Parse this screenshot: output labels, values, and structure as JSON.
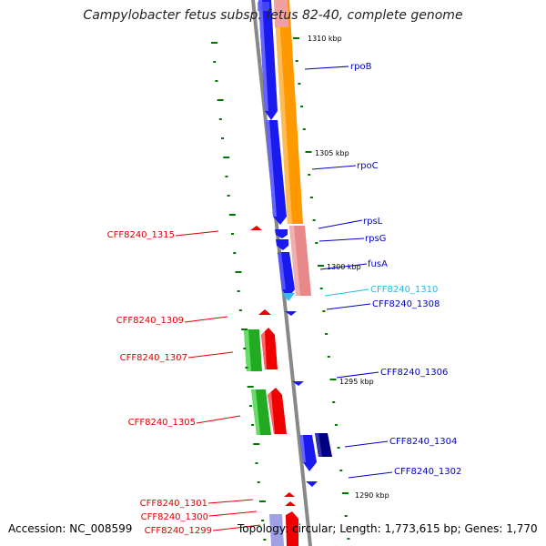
{
  "header": {
    "title": "Campylobacter fetus subsp. fetus 82-40, complete genome"
  },
  "footer": {
    "accession": "Accession: NC_008599",
    "stats": "Topology: circular; Length: 1,773,615 bp; Genes: 1,770"
  },
  "colors": {
    "backbone": "#888888",
    "forward_label": "#0000cc",
    "reverse_label": "#dd0000",
    "rna_label": "#22bbdd",
    "tick": "#007700",
    "orange_band": "#ff9900",
    "pink_band": "#e88888"
  },
  "scale": {
    "ticks": [
      {
        "label": "1310 kbp"
      },
      {
        "label": "1305 kbp"
      },
      {
        "label": "1300 kbp"
      },
      {
        "label": "1295 kbp"
      },
      {
        "label": "1290 kbp"
      }
    ]
  },
  "gene_labels": [
    {
      "text": "rpoB",
      "strand": "forward"
    },
    {
      "text": "rpoC",
      "strand": "forward"
    },
    {
      "text": "rpsL",
      "strand": "forward"
    },
    {
      "text": "rpsG",
      "strand": "forward"
    },
    {
      "text": "fusA",
      "strand": "forward"
    },
    {
      "text": "CFF8240_1310",
      "strand": "rna"
    },
    {
      "text": "CFF8240_1308",
      "strand": "forward"
    },
    {
      "text": "CFF8240_1306",
      "strand": "forward"
    },
    {
      "text": "CFF8240_1304",
      "strand": "forward"
    },
    {
      "text": "CFF8240_1302",
      "strand": "forward"
    },
    {
      "text": "CFF8240_1315",
      "strand": "reverse"
    },
    {
      "text": "CFF8240_1309",
      "strand": "reverse"
    },
    {
      "text": "CFF8240_1307",
      "strand": "reverse"
    },
    {
      "text": "CFF8240_1305",
      "strand": "reverse"
    },
    {
      "text": "CFF8240_1301",
      "strand": "reverse"
    },
    {
      "text": "CFF8240_1300",
      "strand": "reverse"
    },
    {
      "text": "CFF8240_1299",
      "strand": "reverse"
    }
  ]
}
